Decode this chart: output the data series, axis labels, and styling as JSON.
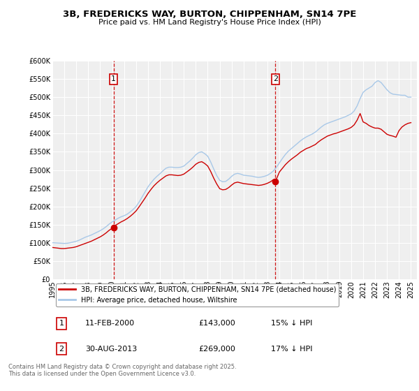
{
  "title": "3B, FREDERICKS WAY, BURTON, CHIPPENHAM, SN14 7PE",
  "subtitle": "Price paid vs. HM Land Registry's House Price Index (HPI)",
  "ylim": [
    0,
    600000
  ],
  "yticks": [
    0,
    50000,
    100000,
    150000,
    200000,
    250000,
    300000,
    350000,
    400000,
    450000,
    500000,
    550000,
    600000
  ],
  "xlim_start": 1995.0,
  "xlim_end": 2025.5,
  "background_color": "#ffffff",
  "plot_bg_color": "#efefef",
  "grid_color": "#ffffff",
  "hpi_color": "#a8c8e8",
  "price_color": "#cc0000",
  "marker1_x": 2000.12,
  "marker1_y": 143000,
  "marker2_x": 2013.66,
  "marker2_y": 269000,
  "annotation1_label": "1",
  "annotation2_label": "2",
  "legend_label_price": "3B, FREDERICKS WAY, BURTON, CHIPPENHAM, SN14 7PE (detached house)",
  "legend_label_hpi": "HPI: Average price, detached house, Wiltshire",
  "table_row1": [
    "1",
    "11-FEB-2000",
    "£143,000",
    "15% ↓ HPI"
  ],
  "table_row2": [
    "2",
    "30-AUG-2013",
    "£269,000",
    "17% ↓ HPI"
  ],
  "footer": "Contains HM Land Registry data © Crown copyright and database right 2025.\nThis data is licensed under the Open Government Licence v3.0.",
  "hpi_data_x": [
    1995.0,
    1995.25,
    1995.5,
    1995.75,
    1996.0,
    1996.25,
    1996.5,
    1996.75,
    1997.0,
    1997.25,
    1997.5,
    1997.75,
    1998.0,
    1998.25,
    1998.5,
    1998.75,
    1999.0,
    1999.25,
    1999.5,
    1999.75,
    2000.0,
    2000.25,
    2000.5,
    2000.75,
    2001.0,
    2001.25,
    2001.5,
    2001.75,
    2002.0,
    2002.25,
    2002.5,
    2002.75,
    2003.0,
    2003.25,
    2003.5,
    2003.75,
    2004.0,
    2004.25,
    2004.5,
    2004.75,
    2005.0,
    2005.25,
    2005.5,
    2005.75,
    2006.0,
    2006.25,
    2006.5,
    2006.75,
    2007.0,
    2007.25,
    2007.5,
    2007.75,
    2008.0,
    2008.25,
    2008.5,
    2008.75,
    2009.0,
    2009.25,
    2009.5,
    2009.75,
    2010.0,
    2010.25,
    2010.5,
    2010.75,
    2011.0,
    2011.25,
    2011.5,
    2011.75,
    2012.0,
    2012.25,
    2012.5,
    2012.75,
    2013.0,
    2013.25,
    2013.5,
    2013.75,
    2014.0,
    2014.25,
    2014.5,
    2014.75,
    2015.0,
    2015.25,
    2015.5,
    2015.75,
    2016.0,
    2016.25,
    2016.5,
    2016.75,
    2017.0,
    2017.25,
    2017.5,
    2017.75,
    2018.0,
    2018.25,
    2018.5,
    2018.75,
    2019.0,
    2019.25,
    2019.5,
    2019.75,
    2020.0,
    2020.25,
    2020.5,
    2020.75,
    2021.0,
    2021.25,
    2021.5,
    2021.75,
    2022.0,
    2022.25,
    2022.5,
    2022.75,
    2023.0,
    2023.25,
    2023.5,
    2023.75,
    2024.0,
    2024.25,
    2024.5,
    2024.75,
    2025.0
  ],
  "hpi_data_y": [
    101000,
    100500,
    100000,
    99500,
    99000,
    99500,
    101000,
    103000,
    105000,
    108000,
    112000,
    116000,
    119000,
    122000,
    126000,
    130000,
    134000,
    139000,
    145000,
    152000,
    158000,
    163000,
    168000,
    172000,
    175000,
    179000,
    185000,
    192000,
    200000,
    212000,
    226000,
    240000,
    254000,
    265000,
    275000,
    283000,
    290000,
    298000,
    305000,
    308000,
    308000,
    307000,
    307000,
    308000,
    311000,
    318000,
    325000,
    333000,
    342000,
    348000,
    350000,
    345000,
    338000,
    322000,
    303000,
    285000,
    272000,
    268000,
    269000,
    275000,
    283000,
    289000,
    291000,
    289000,
    286000,
    285000,
    284000,
    283000,
    281000,
    280000,
    281000,
    283000,
    286000,
    291000,
    298000,
    308000,
    320000,
    332000,
    343000,
    352000,
    359000,
    366000,
    373000,
    380000,
    386000,
    391000,
    395000,
    399000,
    404000,
    411000,
    418000,
    424000,
    428000,
    431000,
    434000,
    437000,
    440000,
    443000,
    446000,
    450000,
    454000,
    462000,
    476000,
    496000,
    513000,
    520000,
    525000,
    530000,
    540000,
    545000,
    540000,
    530000,
    520000,
    512000,
    508000,
    507000,
    506000,
    505000,
    505000,
    500000,
    500000
  ],
  "price_data_x": [
    1995.0,
    1995.25,
    1995.5,
    1995.75,
    1996.0,
    1996.25,
    1996.5,
    1996.75,
    1997.0,
    1997.25,
    1997.5,
    1997.75,
    1998.0,
    1998.25,
    1998.5,
    1998.75,
    1999.0,
    1999.25,
    1999.5,
    1999.75,
    2000.12,
    2000.25,
    2000.5,
    2000.75,
    2001.0,
    2001.25,
    2001.5,
    2001.75,
    2002.0,
    2002.25,
    2002.5,
    2002.75,
    2003.0,
    2003.25,
    2003.5,
    2003.75,
    2004.0,
    2004.25,
    2004.5,
    2004.75,
    2005.0,
    2005.25,
    2005.5,
    2005.75,
    2006.0,
    2006.25,
    2006.5,
    2006.75,
    2007.0,
    2007.25,
    2007.5,
    2007.75,
    2008.0,
    2008.25,
    2008.5,
    2008.75,
    2009.0,
    2009.25,
    2009.5,
    2009.75,
    2010.0,
    2010.25,
    2010.5,
    2010.75,
    2011.0,
    2011.25,
    2011.5,
    2011.75,
    2012.0,
    2012.25,
    2012.5,
    2012.75,
    2013.0,
    2013.25,
    2013.5,
    2013.66,
    2014.0,
    2014.25,
    2014.5,
    2014.75,
    2015.0,
    2015.25,
    2015.5,
    2015.75,
    2016.0,
    2016.25,
    2016.5,
    2016.75,
    2017.0,
    2017.25,
    2017.5,
    2017.75,
    2018.0,
    2018.25,
    2018.5,
    2018.75,
    2019.0,
    2019.25,
    2019.5,
    2019.75,
    2020.0,
    2020.25,
    2020.5,
    2020.75,
    2021.0,
    2021.25,
    2021.5,
    2021.75,
    2022.0,
    2022.25,
    2022.5,
    2022.75,
    2023.0,
    2023.25,
    2023.5,
    2023.75,
    2024.0,
    2024.25,
    2024.5,
    2024.75,
    2025.0
  ],
  "price_data_y": [
    88000,
    87000,
    86000,
    85000,
    85000,
    86000,
    87000,
    88000,
    90000,
    93000,
    96000,
    99000,
    102000,
    105000,
    109000,
    113000,
    117000,
    122000,
    128000,
    135000,
    143000,
    148000,
    153000,
    158000,
    162000,
    167000,
    173000,
    180000,
    188000,
    199000,
    211000,
    223000,
    236000,
    247000,
    257000,
    265000,
    272000,
    278000,
    284000,
    287000,
    287000,
    286000,
    285000,
    286000,
    289000,
    295000,
    301000,
    308000,
    316000,
    321000,
    323000,
    318000,
    311000,
    296000,
    278000,
    262000,
    249000,
    246000,
    247000,
    252000,
    259000,
    265000,
    267000,
    265000,
    263000,
    262000,
    261000,
    260000,
    259000,
    258000,
    259000,
    261000,
    264000,
    268000,
    274000,
    269000,
    295000,
    305000,
    315000,
    323000,
    330000,
    336000,
    342000,
    349000,
    354000,
    359000,
    362000,
    366000,
    370000,
    377000,
    383000,
    388000,
    393000,
    396000,
    399000,
    401000,
    404000,
    407000,
    410000,
    413000,
    417000,
    424000,
    437000,
    455000,
    432000,
    428000,
    422000,
    418000,
    415000,
    415000,
    412000,
    405000,
    398000,
    395000,
    393000,
    390000,
    408000,
    418000,
    424000,
    428000,
    430000
  ]
}
